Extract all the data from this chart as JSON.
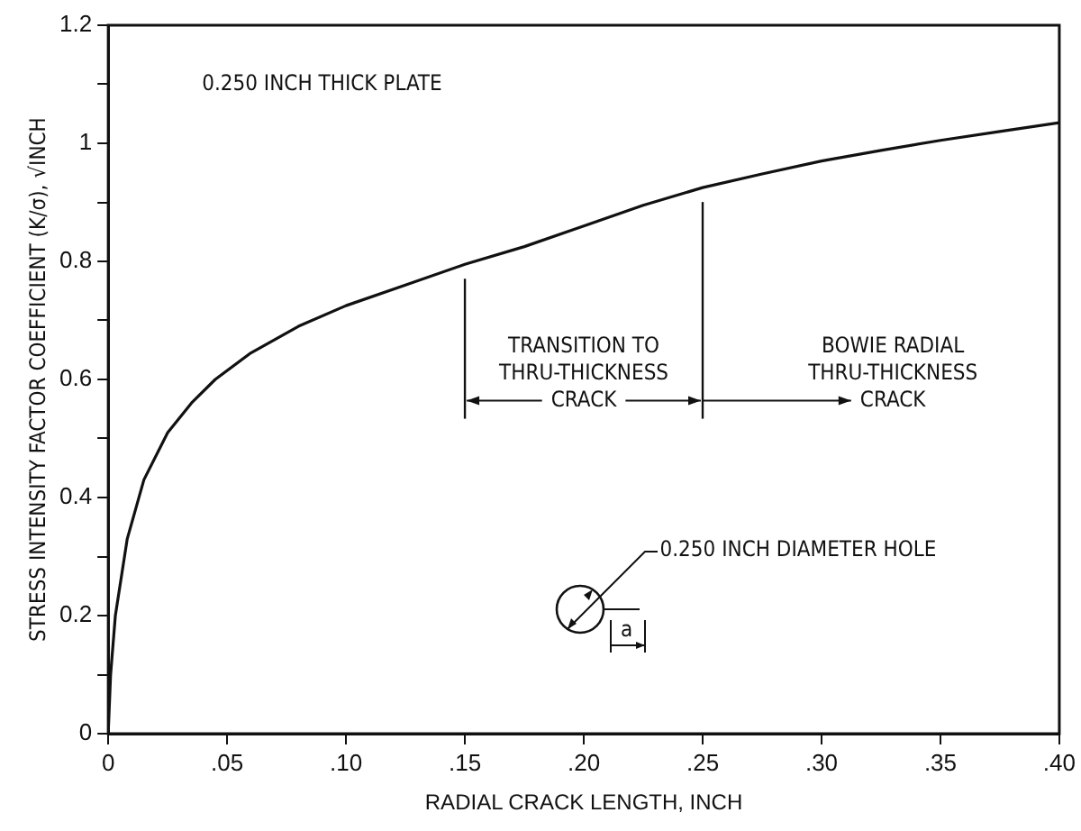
{
  "chart_data": {
    "type": "line",
    "xlabel": "RADIAL CRACK LENGTH, INCH",
    "ylabel": "STRESS INTENSITY FACTOR COEFFICIENT (K/σ), √INCH",
    "x": [
      0,
      0.001,
      0.003,
      0.008,
      0.015,
      0.025,
      0.035,
      0.045,
      0.06,
      0.08,
      0.1,
      0.125,
      0.15,
      0.175,
      0.2,
      0.225,
      0.25,
      0.275,
      0.3,
      0.325,
      0.35,
      0.375,
      0.4
    ],
    "series": [
      {
        "color": "#111111",
        "values": [
          0,
          0.1,
          0.2,
          0.33,
          0.43,
          0.51,
          0.56,
          0.6,
          0.645,
          0.69,
          0.725,
          0.76,
          0.795,
          0.825,
          0.86,
          0.895,
          0.925,
          0.948,
          0.97,
          0.988,
          1.005,
          1.02,
          1.035
        ]
      }
    ],
    "xlim": [
      0,
      0.4
    ],
    "xticks": [
      0,
      {
        "value": 0.05,
        "label": ".05"
      },
      {
        "value": 0.1,
        "label": ".10"
      },
      {
        "value": 0.15,
        "label": ".15"
      },
      {
        "value": 0.2,
        "label": ".20"
      },
      {
        "value": 0.25,
        "label": ".25"
      },
      {
        "value": 0.3,
        "label": ".30"
      },
      {
        "value": 0.35,
        "label": ".35"
      },
      {
        "value": 0.4,
        "label": ".40"
      }
    ],
    "ylim": [
      0,
      1.2
    ],
    "yticks": [
      0,
      {
        "value": 0.1,
        "label": null
      },
      0.2,
      {
        "value": 0.3,
        "label": null
      },
      0.4,
      {
        "value": 0.5,
        "label": null
      },
      0.6,
      {
        "value": 0.7,
        "label": null
      },
      0.8,
      {
        "value": 0.9,
        "label": null
      },
      1.0,
      {
        "value": 1.1,
        "label": null
      },
      1.2
    ],
    "ref_lines": [
      {
        "axis": "x",
        "value": 0.15,
        "label": "TRANSITION TO\nTHRU-THICKNESS\nCRACK"
      },
      {
        "axis": "x",
        "value": 0.25,
        "label": "BOWIE RADIAL\nTHRU-THICKNESS\nCRACK"
      }
    ],
    "annotations": [
      "0.250 INCH THICK PLATE",
      "0.250 INCH DIAMETER HOLE",
      "a"
    ],
    "marker": "none",
    "line_style": "solid",
    "grid": false,
    "legend": false
  }
}
